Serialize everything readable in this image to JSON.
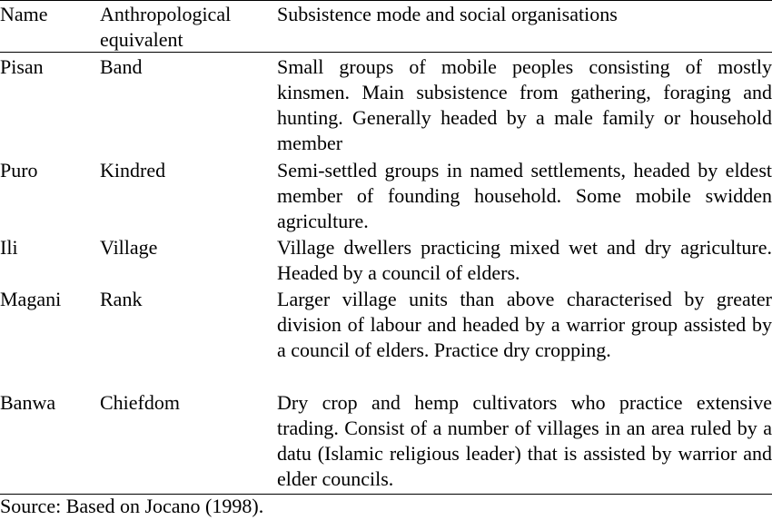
{
  "table": {
    "headers": {
      "name": "Name",
      "anthropological": "Anthropological equivalent",
      "subsistence": "Subsistence mode and social organisations"
    },
    "rows": [
      {
        "name": "Pisan",
        "equivalent": "Band",
        "description": "Small groups of mobile peoples consisting of mostly kinsmen. Main subsistence from gathering, foraging and hunting. Generally headed by a male family or household member"
      },
      {
        "name": "Puro",
        "equivalent": "Kindred",
        "description": "Semi-settled groups in named settlements, headed by eldest member of founding household. Some mobile swidden agriculture."
      },
      {
        "name": "Ili",
        "equivalent": "Village",
        "description": "Village dwellers practicing mixed wet and dry agriculture. Headed by a council of elders."
      },
      {
        "name": "Magani",
        "equivalent": "Rank",
        "description": "Larger village units than above characterised by greater division of labour and headed by a warrior group assisted by a council of elders. Practice dry cropping."
      },
      {
        "name": "Banwa",
        "equivalent": "Chiefdom",
        "description": "Dry crop and hemp cultivators who practice extensive trading. Consist of a number of villages in an area ruled by a datu (Islamic religious leader) that is assisted by warrior and elder councils."
      }
    ]
  },
  "source": "Source: Based on Jocano (1998)."
}
